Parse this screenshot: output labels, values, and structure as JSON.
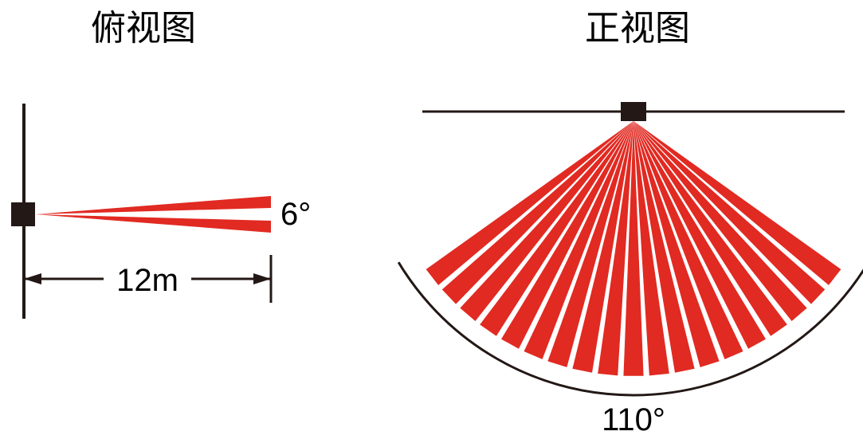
{
  "top_view": {
    "title": "俯视图",
    "title_fontsize": 44,
    "title_color": "#000000",
    "distance_label": "12m",
    "distance_fontsize": 40,
    "angle_label": "6°",
    "angle_fontsize": 40,
    "beam_color": "#e12a22",
    "line_color": "#231815",
    "sensor_color": "#231815",
    "background_color": "#ffffff",
    "beam_half_angle": 3,
    "sensor_width": 30,
    "sensor_height": 30,
    "wall_line_width": 4,
    "dimension_line_width": 3
  },
  "front_view": {
    "title": "正视图",
    "title_fontsize": 44,
    "title_color": "#000000",
    "angle_label": "110°",
    "angle_fontsize": 40,
    "beam_color": "#e12a22",
    "line_color": "#231815",
    "sensor_color": "#231815",
    "ceiling_line_width": 3,
    "arc_line_width": 3,
    "background_color": "#ffffff",
    "fan_total_angle": 110,
    "num_slices": 19,
    "slice_angle": 4.5,
    "gap_angle": 1.3,
    "sensor_width": 32,
    "sensor_height": 24,
    "fan_radius": 320
  }
}
